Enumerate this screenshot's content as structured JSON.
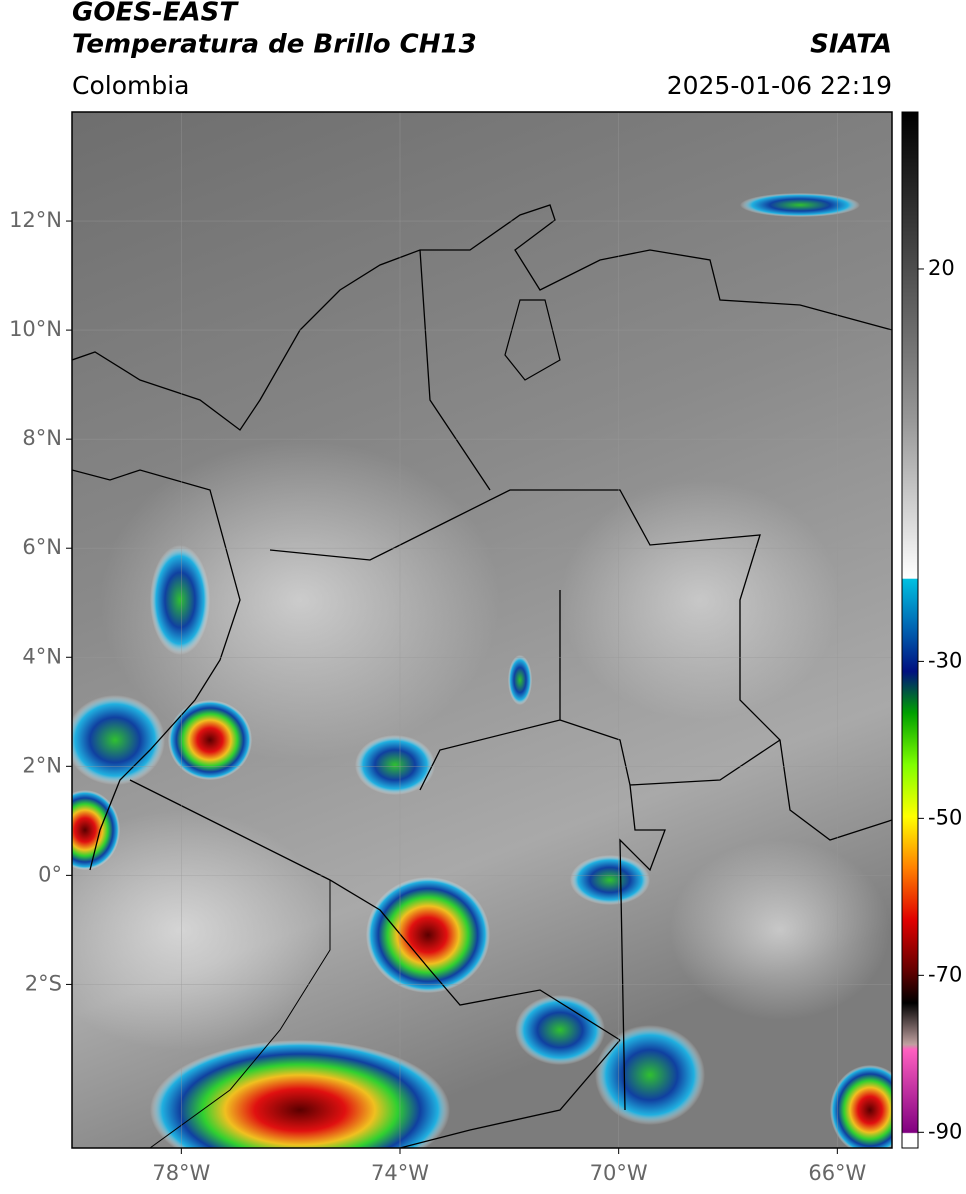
{
  "header": {
    "title": "GOES-EAST",
    "subtitle": "Temperatura de Brillo CH13",
    "region": "Colombia",
    "source": "SIATA",
    "datetime": "2025-01-06 22:19"
  },
  "map": {
    "xlim": [
      -80,
      -65
    ],
    "ylim": [
      -5,
      14
    ],
    "xticks": [
      {
        "value": -78,
        "label": "78°W"
      },
      {
        "value": -74,
        "label": "74°W"
      },
      {
        "value": -70,
        "label": "70°W"
      },
      {
        "value": -66,
        "label": "66°W"
      }
    ],
    "yticks": [
      {
        "value": 12,
        "label": "12°N"
      },
      {
        "value": 10,
        "label": "10°N"
      },
      {
        "value": 8,
        "label": "8°N"
      },
      {
        "value": 6,
        "label": "6°N"
      },
      {
        "value": 4,
        "label": "4°N"
      },
      {
        "value": 2,
        "label": "2°N"
      },
      {
        "value": 0,
        "label": "0°"
      },
      {
        "value": -2,
        "label": "2°S"
      }
    ],
    "grid": true
  },
  "colorbar": {
    "lim": [
      -92,
      40
    ],
    "ticks": [
      20,
      -30,
      -50,
      -70,
      -90
    ]
  }
}
